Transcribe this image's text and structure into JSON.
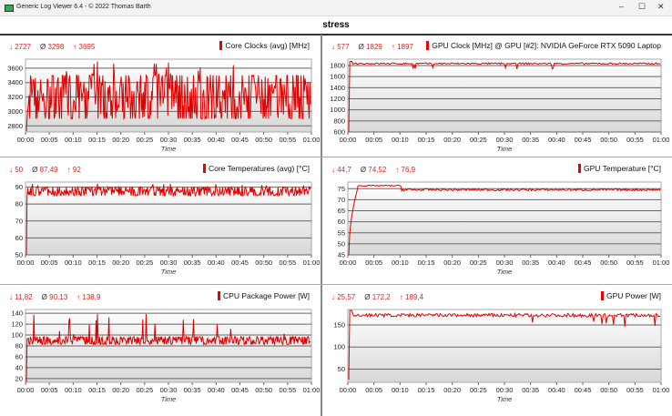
{
  "window": {
    "title": "Generic Log Viewer 6.4 - © 2022 Thomas Barth",
    "minimize": "–",
    "maximize": "☐",
    "close": "✕"
  },
  "header": {
    "title": "stress"
  },
  "colors": {
    "series": "#e00000",
    "accent": "#d22222"
  },
  "chart_data": [
    {
      "type": "line",
      "title": "Core Clocks (avg) [MHz]",
      "min": "2727",
      "avg": "3298",
      "max": "3695",
      "ylim": [
        2715,
        3725
      ],
      "yticks": [
        2800,
        3000,
        3200,
        3400,
        3600
      ],
      "xlabel": "Time",
      "xticks": [
        "00:00",
        "00:05",
        "00:10",
        "00:15",
        "00:20",
        "00:25",
        "00:30",
        "00:35",
        "00:40",
        "00:45",
        "00:50",
        "00:55",
        "01:00"
      ],
      "pattern": "noisy",
      "start": 2727,
      "low": 2900,
      "high": 3500,
      "peak": 3695
    },
    {
      "type": "line",
      "title": "GPU Clock [MHz] @ GPU [#2]: NVIDIA GeForce RTX 5090 Laptop",
      "min": "577",
      "avg": "1829",
      "max": "1897",
      "ylim": [
        600,
        1915
      ],
      "yticks": [
        600,
        800,
        1000,
        1200,
        1400,
        1600,
        1800
      ],
      "xlabel": "Time",
      "xticks": [
        "00:00",
        "00:05",
        "00:10",
        "00:15",
        "00:20",
        "00:25",
        "00:30",
        "00:35",
        "00:40",
        "00:45",
        "00:50",
        "00:55",
        "01:00"
      ],
      "pattern": "flat",
      "start": 577,
      "low": 1820,
      "high": 1850,
      "peak": 1897
    },
    {
      "type": "line",
      "title": "Core Temperatures (avg) [°C]",
      "min": "50",
      "avg": "87,49",
      "max": "92",
      "ylim": [
        50,
        93
      ],
      "yticks": [
        50,
        60,
        70,
        80,
        90
      ],
      "xlabel": "Time",
      "xticks": [
        "00:00",
        "00:05",
        "00:10",
        "00:15",
        "00:20",
        "00:25",
        "00:30",
        "00:35",
        "00:40",
        "00:45",
        "00:50",
        "00:55",
        "01:00"
      ],
      "pattern": "noisy",
      "start": 50,
      "low": 85,
      "high": 90,
      "peak": 92
    },
    {
      "type": "line",
      "title": "GPU Temperature [°C]",
      "min": "44,7",
      "avg": "74,52",
      "max": "76,9",
      "ylim": [
        45,
        78
      ],
      "yticks": [
        45,
        50,
        55,
        60,
        65,
        70,
        75
      ],
      "xlabel": "Time",
      "xticks": [
        "00:00",
        "00:05",
        "00:10",
        "00:15",
        "00:20",
        "00:25",
        "00:30",
        "00:35",
        "00:40",
        "00:45",
        "00:50",
        "00:55",
        "01:00"
      ],
      "pattern": "temp",
      "start": 44.7,
      "low": 74,
      "high": 75,
      "peak": 76.9
    },
    {
      "type": "line",
      "title": "CPU Package Power [W]",
      "min": "11,82",
      "avg": "90,13",
      "max": "138,9",
      "ylim": [
        13,
        147
      ],
      "yticks": [
        20,
        40,
        60,
        80,
        100,
        120,
        140
      ],
      "xlabel": "Time",
      "xticks": [
        "00:00",
        "00:05",
        "00:10",
        "00:15",
        "00:20",
        "00:25",
        "00:30",
        "00:35",
        "00:40",
        "00:45",
        "00:50",
        "00:55",
        "01:00"
      ],
      "pattern": "noisy",
      "start": 11.82,
      "low": 83,
      "high": 97,
      "peak": 138.9
    },
    {
      "type": "line",
      "title": "GPU Power [W]",
      "min": "25,57",
      "avg": "172,2",
      "max": "189,4",
      "ylim": [
        20,
        185
      ],
      "yticks": [
        50,
        100,
        150
      ],
      "xlabel": "Time",
      "xticks": [
        "00:00",
        "00:05",
        "00:10",
        "00:15",
        "00:20",
        "00:25",
        "00:30",
        "00:35",
        "00:40",
        "00:45",
        "00:50",
        "00:55",
        "01:00"
      ],
      "pattern": "flat",
      "start": 25.57,
      "low": 168,
      "high": 176,
      "peak": 189.4
    }
  ]
}
